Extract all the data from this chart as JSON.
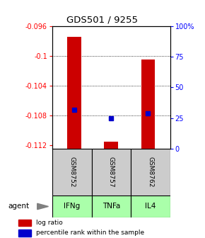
{
  "title": "GDS501 / 9255",
  "samples": [
    "GSM8752",
    "GSM8757",
    "GSM8762"
  ],
  "agents": [
    "IFNg",
    "TNFa",
    "IL4"
  ],
  "log_ratios": [
    -0.0974,
    -0.1115,
    -0.1005
  ],
  "percentile_ranks": [
    32,
    25,
    29
  ],
  "ylim_left": [
    -0.1125,
    -0.096
  ],
  "ylim_right": [
    0,
    100
  ],
  "yticks_left": [
    -0.112,
    -0.108,
    -0.104,
    -0.1,
    -0.096
  ],
  "yticks_right": [
    0,
    25,
    50,
    75,
    100
  ],
  "bar_color": "#cc0000",
  "dot_color": "#0000cc",
  "sample_bg_color": "#cccccc",
  "agent_row_color": "#aaffaa",
  "legend_bar_label": "log ratio",
  "legend_dot_label": "percentile rank within the sample"
}
